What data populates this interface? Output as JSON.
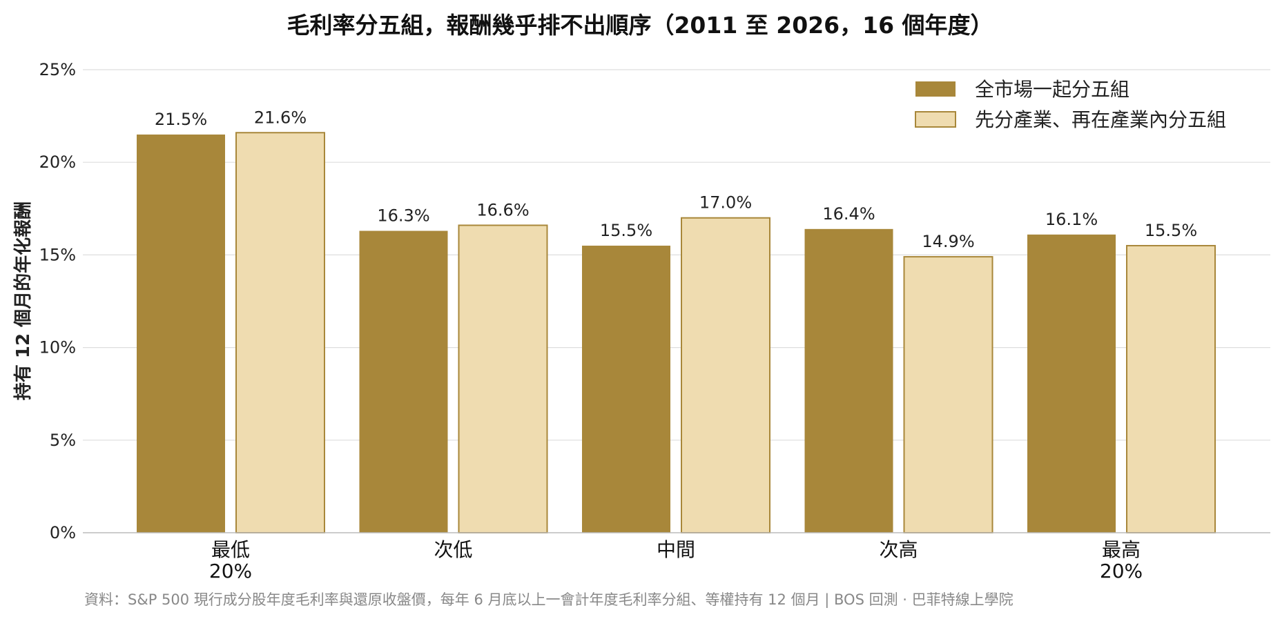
{
  "chart_data": {
    "type": "bar",
    "title": "毛利率分五組，報酬幾乎排不出順序（2011 至 2026，16 個年度）",
    "xlabel": "",
    "ylabel": "持有 12 個月的年化報酬",
    "ylim": [
      0,
      25
    ],
    "yticks": [
      "0%",
      "5%",
      "10%",
      "15%",
      "20%",
      "25%"
    ],
    "ytick_values": [
      0,
      5,
      10,
      15,
      20,
      25
    ],
    "grid": true,
    "legend_position": "top-right",
    "categories": [
      [
        "最低",
        "20%"
      ],
      [
        "次低"
      ],
      [
        "中間"
      ],
      [
        "次高"
      ],
      [
        "最高",
        "20%"
      ]
    ],
    "series": [
      {
        "name": "全市場一起分五組",
        "color": "#a8873a",
        "values": [
          21.5,
          16.3,
          15.5,
          16.4,
          16.1
        ],
        "labels": [
          "21.5%",
          "16.3%",
          "15.5%",
          "16.4%",
          "16.1%"
        ]
      },
      {
        "name": "先分產業、再在產業內分五組",
        "color": "#efdcb0",
        "edge_color": "#a8873a",
        "values": [
          21.6,
          16.6,
          17.0,
          14.9,
          15.5
        ],
        "labels": [
          "21.6%",
          "16.6%",
          "17.0%",
          "14.9%",
          "15.5%"
        ]
      }
    ],
    "source": "資料：S&P 500 現行成分股年度毛利率與還原收盤價，每年 6 月底以上一會計年度毛利率分組、等權持有 12 個月 | BOS 回測 ·  巴菲特線上學院"
  }
}
